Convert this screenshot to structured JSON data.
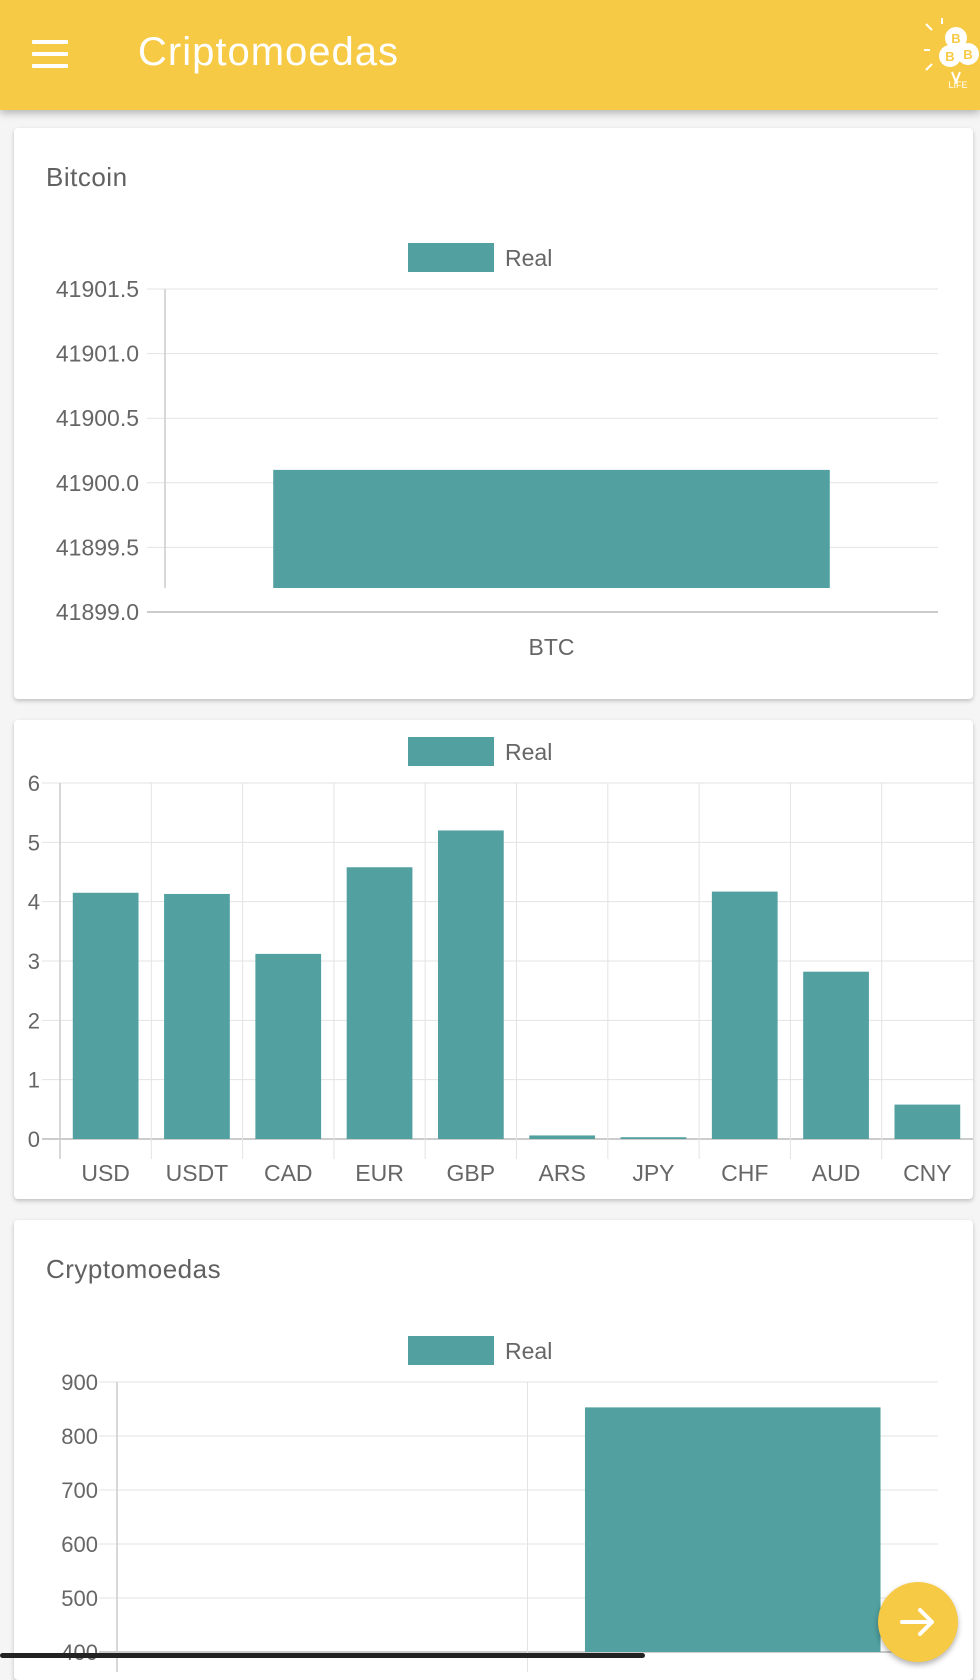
{
  "appbar": {
    "title": "Criptomoedas",
    "menu_icon": "hamburger-menu-icon",
    "logo_letter": "B",
    "logo_text": "LIFE",
    "color": "#f7ca45"
  },
  "fab": {
    "icon": "arrow-right-icon"
  },
  "bar_color": "#52a0a0",
  "cards": [
    {
      "title": "Bitcoin",
      "chart_data": {
        "type": "bar",
        "categories": [
          "BTC"
        ],
        "series": [
          {
            "name": "Real",
            "values": [
              41900.1
            ]
          }
        ],
        "ylim": [
          41899.0,
          41901.5
        ],
        "yticks": [
          "41901.5",
          "41901.0",
          "41900.5",
          "41900.0",
          "41899.5",
          "41899.0"
        ],
        "legend": "top-center",
        "grid": true
      }
    },
    {
      "title": "",
      "chart_data": {
        "type": "bar",
        "categories": [
          "USD",
          "USDT",
          "CAD",
          "EUR",
          "GBP",
          "ARS",
          "JPY",
          "CHF",
          "AUD",
          "CNY"
        ],
        "series": [
          {
            "name": "Real",
            "values": [
              4.15,
              4.13,
              3.12,
              4.58,
              5.2,
              0.06,
              0.03,
              4.17,
              2.82,
              0.58
            ]
          }
        ],
        "ylim": [
          0,
          6
        ],
        "yticks": [
          "6",
          "5",
          "4",
          "3",
          "2",
          "1",
          "0"
        ],
        "legend": "top-center",
        "grid": true
      }
    },
    {
      "title": "Cryptomoedas",
      "chart_data": {
        "type": "bar",
        "categories": [
          "",
          ""
        ],
        "series": [
          {
            "name": "Real",
            "values": [
              null,
              853
            ]
          }
        ],
        "ylim": [
          400,
          900
        ],
        "yticks": [
          "900",
          "800",
          "700",
          "600",
          "500",
          "400"
        ],
        "legend": "top-center",
        "grid": true
      }
    }
  ]
}
